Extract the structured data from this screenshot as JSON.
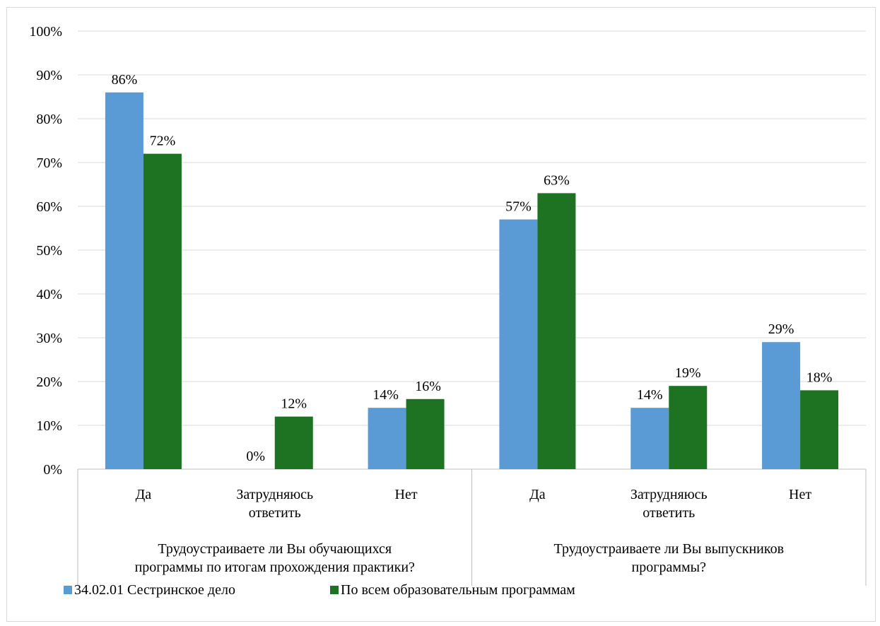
{
  "chart_data": {
    "type": "bar",
    "title": "",
    "ylim": [
      0,
      100
    ],
    "y_ticks": [
      "0%",
      "10%",
      "20%",
      "30%",
      "40%",
      "50%",
      "60%",
      "70%",
      "80%",
      "90%",
      "100%"
    ],
    "grid": true,
    "groups": [
      {
        "label_lines": [
          "Трудоустраиваете ли Вы обучающихся",
          "программы по итогам прохождения практики?"
        ],
        "categories": [
          {
            "label_lines": [
              "Да"
            ]
          },
          {
            "label_lines": [
              "Затрудняюсь",
              "ответить"
            ]
          },
          {
            "label_lines": [
              "Нет"
            ]
          }
        ]
      },
      {
        "label_lines": [
          "Трудоустраиваете ли Вы выпускников",
          "программы?"
        ],
        "categories": [
          {
            "label_lines": [
              "Да"
            ]
          },
          {
            "label_lines": [
              "Затрудняюсь",
              "ответить"
            ]
          },
          {
            "label_lines": [
              "Нет"
            ]
          }
        ]
      }
    ],
    "series": [
      {
        "name": "34.02.01 Сестринское дело",
        "color": "#5B9BD5",
        "values": [
          86,
          0,
          14,
          57,
          14,
          29
        ],
        "labels": [
          "86%",
          "0%",
          "14%",
          "57%",
          "14%",
          "29%"
        ]
      },
      {
        "name": "По всем образовательным программам",
        "color": "#1E7322",
        "values": [
          72,
          12,
          16,
          63,
          19,
          18
        ],
        "labels": [
          "72%",
          "12%",
          "16%",
          "63%",
          "19%",
          "18%"
        ]
      }
    ],
    "legend": "bottom-left"
  }
}
